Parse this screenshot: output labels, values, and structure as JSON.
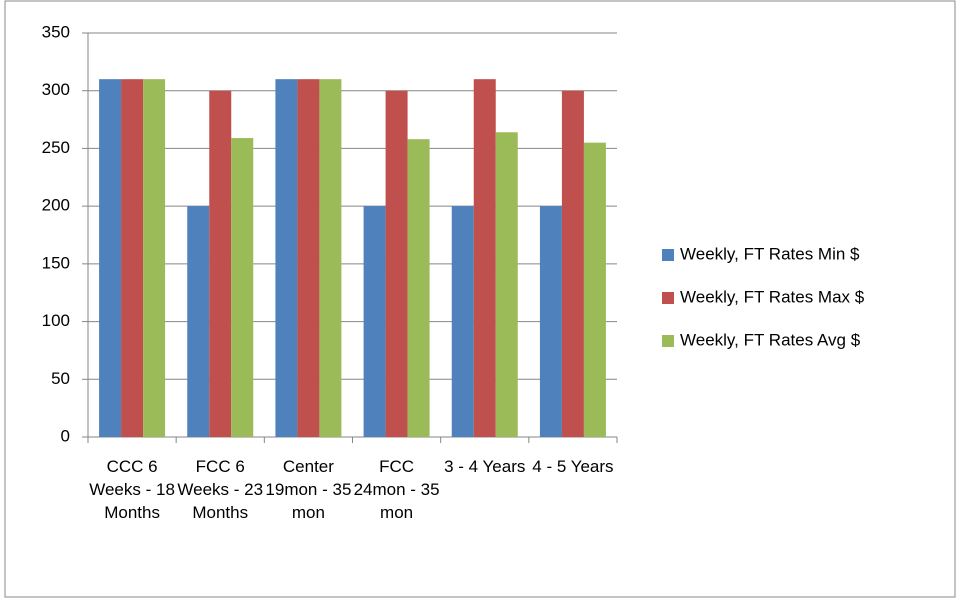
{
  "chart_data": {
    "type": "bar",
    "categories": [
      "CCC 6 Weeks - 18 Months",
      "FCC 6 Weeks - 23 Months",
      "Center 19mon - 35 mon",
      "FCC 24mon - 35 mon",
      "3 - 4 Years",
      "4 - 5 Years"
    ],
    "series": [
      {
        "name": "Weekly, FT Rates Min $",
        "color": "#4f81bd",
        "values": [
          310,
          200,
          310,
          200,
          200,
          200
        ]
      },
      {
        "name": "Weekly, FT Rates Max $",
        "color": "#c0504d",
        "values": [
          310,
          300,
          310,
          300,
          310,
          300
        ]
      },
      {
        "name": "Weekly, FT Rates Avg $",
        "color": "#9bbb59",
        "values": [
          310,
          259,
          310,
          258,
          264,
          255
        ]
      }
    ],
    "ylim": [
      0,
      350
    ],
    "yticks": [
      0,
      50,
      100,
      150,
      200,
      250,
      300,
      350
    ],
    "grid": true,
    "legend": "right"
  }
}
